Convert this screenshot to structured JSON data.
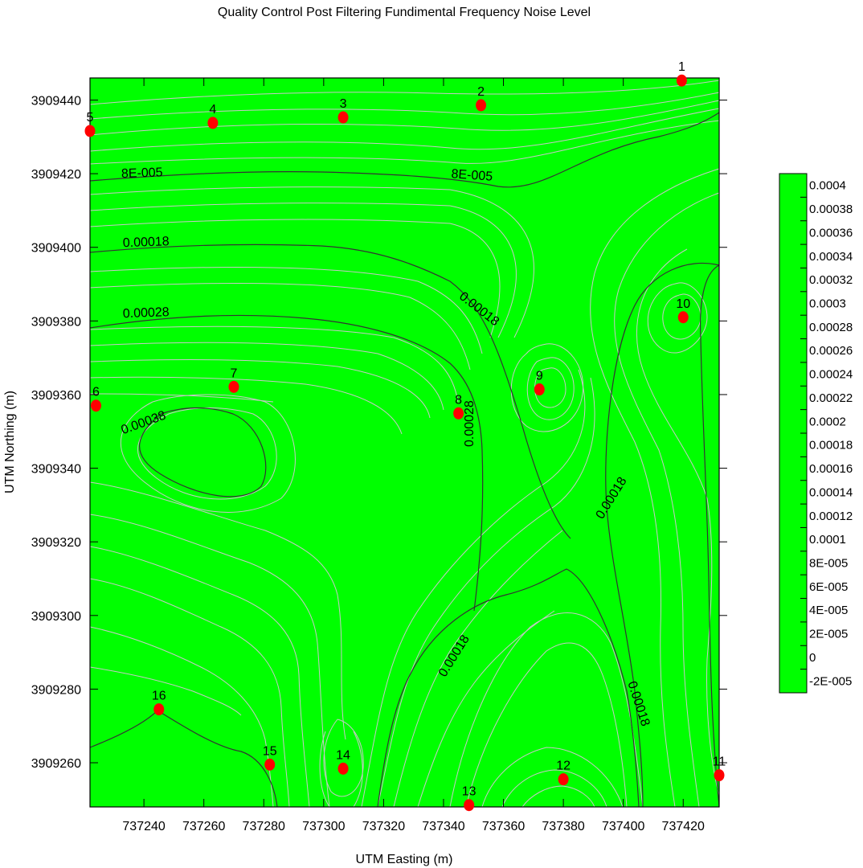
{
  "chart_data": {
    "type": "contour",
    "title": "Quality Control Post Filtering Fundimental Frequency Noise Level",
    "xlabel": "UTM Easting (m)",
    "ylabel": "UTM Northing (m)",
    "xlim": [
      737222,
      737432
    ],
    "ylim": [
      3909248,
      3909446
    ],
    "x_ticks": [
      737240,
      737260,
      737280,
      737300,
      737320,
      737340,
      737360,
      737380,
      737400,
      737420
    ],
    "y_ticks": [
      3909260,
      3909280,
      3909300,
      3909320,
      3909340,
      3909360,
      3909380,
      3909400,
      3909420,
      3909440
    ],
    "fill_color": "#00ff00",
    "major_contour_color": "#333333",
    "minor_contour_color": "#c8c8c8",
    "stations": [
      {
        "id": "1",
        "x": 737419.5,
        "y": 3909445.3
      },
      {
        "id": "2",
        "x": 737352.5,
        "y": 3909438.6
      },
      {
        "id": "3",
        "x": 737306.5,
        "y": 3909435.3
      },
      {
        "id": "4",
        "x": 737263.0,
        "y": 3909433.8
      },
      {
        "id": "5",
        "x": 737222.0,
        "y": 3909431.6
      },
      {
        "id": "6",
        "x": 737224.0,
        "y": 3909357.0
      },
      {
        "id": "7",
        "x": 737270.0,
        "y": 3909362.1
      },
      {
        "id": "8",
        "x": 737345.0,
        "y": 3909354.9
      },
      {
        "id": "9",
        "x": 737372.0,
        "y": 3909361.4
      },
      {
        "id": "10",
        "x": 737420.0,
        "y": 3909381.0
      },
      {
        "id": "11",
        "x": 737432.0,
        "y": 3909256.6
      },
      {
        "id": "12",
        "x": 737380.0,
        "y": 3909255.5
      },
      {
        "id": "13",
        "x": 737348.5,
        "y": 3909248.5
      },
      {
        "id": "14",
        "x": 737306.5,
        "y": 3909258.4
      },
      {
        "id": "15",
        "x": 737282.0,
        "y": 3909259.5
      },
      {
        "id": "16",
        "x": 737245.0,
        "y": 3909274.5
      }
    ],
    "contour_labels": [
      {
        "text": "8E-005",
        "x": 737232.5,
        "y": 3909418.9,
        "angle": -2
      },
      {
        "text": "8E-005",
        "x": 737342.5,
        "y": 3909418.9,
        "angle": 4
      },
      {
        "text": "0.00018",
        "x": 737233.0,
        "y": 3909400.1,
        "angle": -2
      },
      {
        "text": "0.00018",
        "x": 737345.0,
        "y": 3909386.3,
        "angle": 38
      },
      {
        "text": "0.00028",
        "x": 737233.0,
        "y": 3909380.9,
        "angle": -2
      },
      {
        "text": "0.00028",
        "x": 737350.0,
        "y": 3909345.8,
        "angle": -90
      },
      {
        "text": "0.00038",
        "x": 737233.0,
        "y": 3909349.2,
        "angle": -20
      },
      {
        "text": "0.00018",
        "x": 737393.0,
        "y": 3909326.0,
        "angle": -58
      },
      {
        "text": "0.00018",
        "x": 737340.5,
        "y": 3909283.1,
        "angle": -58
      },
      {
        "text": "0.00018",
        "x": 737401.5,
        "y": 3909281.7,
        "angle": 72
      }
    ],
    "colorbar": {
      "labels": [
        "0.0004",
        "0.00038",
        "0.00036",
        "0.00034",
        "0.00032",
        "0.0003",
        "0.00028",
        "0.00026",
        "0.00024",
        "0.00022",
        "0.0002",
        "0.00018",
        "0.00016",
        "0.00014",
        "0.00012",
        "0.0001",
        "8E-005",
        "6E-005",
        "4E-005",
        "2E-005",
        "0",
        "-2E-005"
      ],
      "color": "#00ff00"
    }
  }
}
